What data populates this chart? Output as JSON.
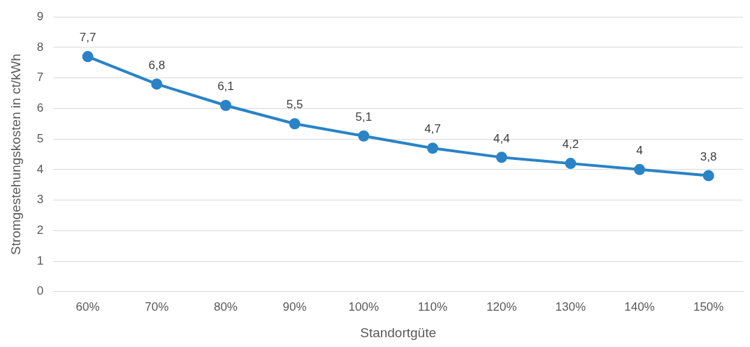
{
  "chart_data": {
    "type": "line",
    "xlabel": "Standortgüte",
    "ylabel": "Stromgestehungskosten in ct/kWh",
    "categories": [
      "60%",
      "70%",
      "80%",
      "90%",
      "100%",
      "110%",
      "120%",
      "130%",
      "140%",
      "150%"
    ],
    "series": [
      {
        "color": "#2a83c6",
        "values": [
          7.7,
          6.8,
          6.1,
          5.5,
          5.1,
          4.7,
          4.4,
          4.2,
          4,
          3.8
        ],
        "value_labels": [
          "7,7",
          "6,8",
          "6,1",
          "5,5",
          "5,1",
          "4,7",
          "4,4",
          "4,2",
          "4",
          "3,8"
        ]
      }
    ],
    "ylim": [
      0,
      9
    ],
    "yticks": [
      0,
      1,
      2,
      3,
      4,
      5,
      6,
      7,
      8,
      9
    ],
    "grid": "y",
    "marker": "circle",
    "line_style": "solid"
  }
}
